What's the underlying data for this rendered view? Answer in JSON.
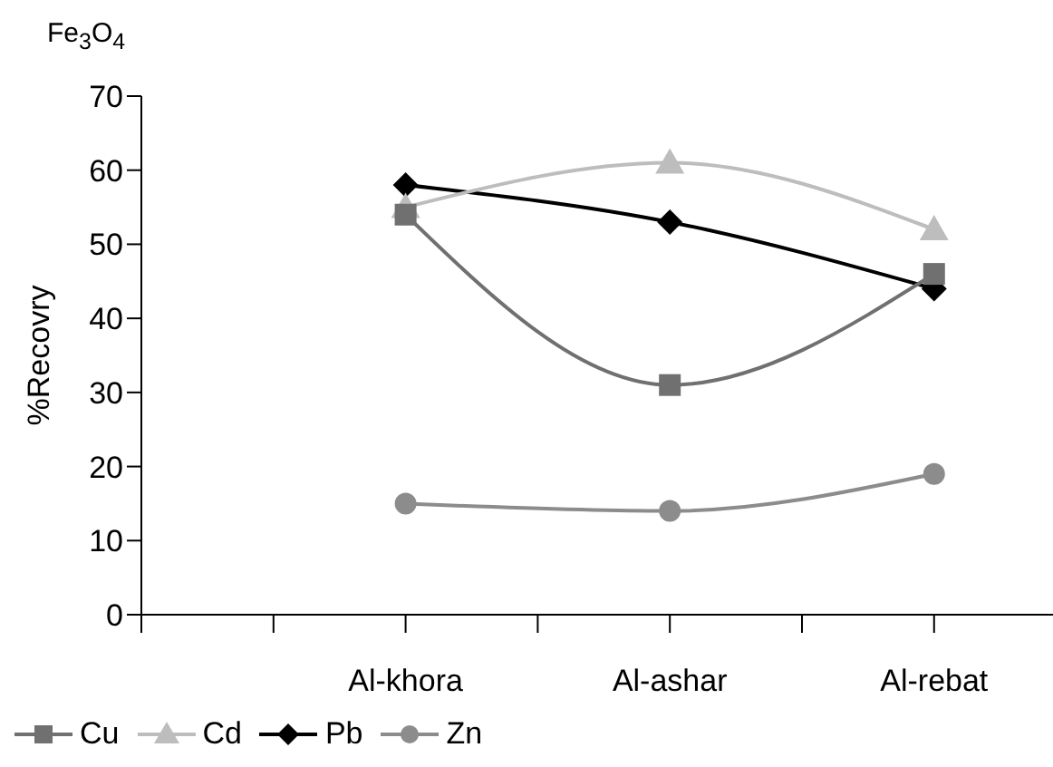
{
  "chart_data": {
    "type": "line",
    "title": "Fe$_{3}$O$_{4}$",
    "ylabel": "%Recovry",
    "categories": [
      null,
      null,
      "Al-khora",
      null,
      "Al-ashar",
      null,
      "Al-rebat"
    ],
    "series": [
      {
        "name": "Cu",
        "color": "#707070",
        "marker": "square",
        "values": [
          null,
          null,
          54,
          null,
          31,
          null,
          46
        ]
      },
      {
        "name": "Cd",
        "color": "#bdbdbd",
        "marker": "triangle",
        "values": [
          null,
          null,
          55,
          null,
          61,
          null,
          52
        ]
      },
      {
        "name": "Pb",
        "color": "#000000",
        "marker": "diamond",
        "values": [
          null,
          null,
          58,
          null,
          53,
          null,
          44
        ]
      },
      {
        "name": "Zn",
        "color": "#8c8c8c",
        "marker": "circle",
        "values": [
          null,
          null,
          15,
          null,
          14,
          null,
          19
        ]
      }
    ],
    "ylim": [
      0,
      70
    ],
    "yticks": [
      0,
      10,
      20,
      30,
      40,
      50,
      60,
      70
    ],
    "grid": false,
    "legend": "bottom left"
  }
}
